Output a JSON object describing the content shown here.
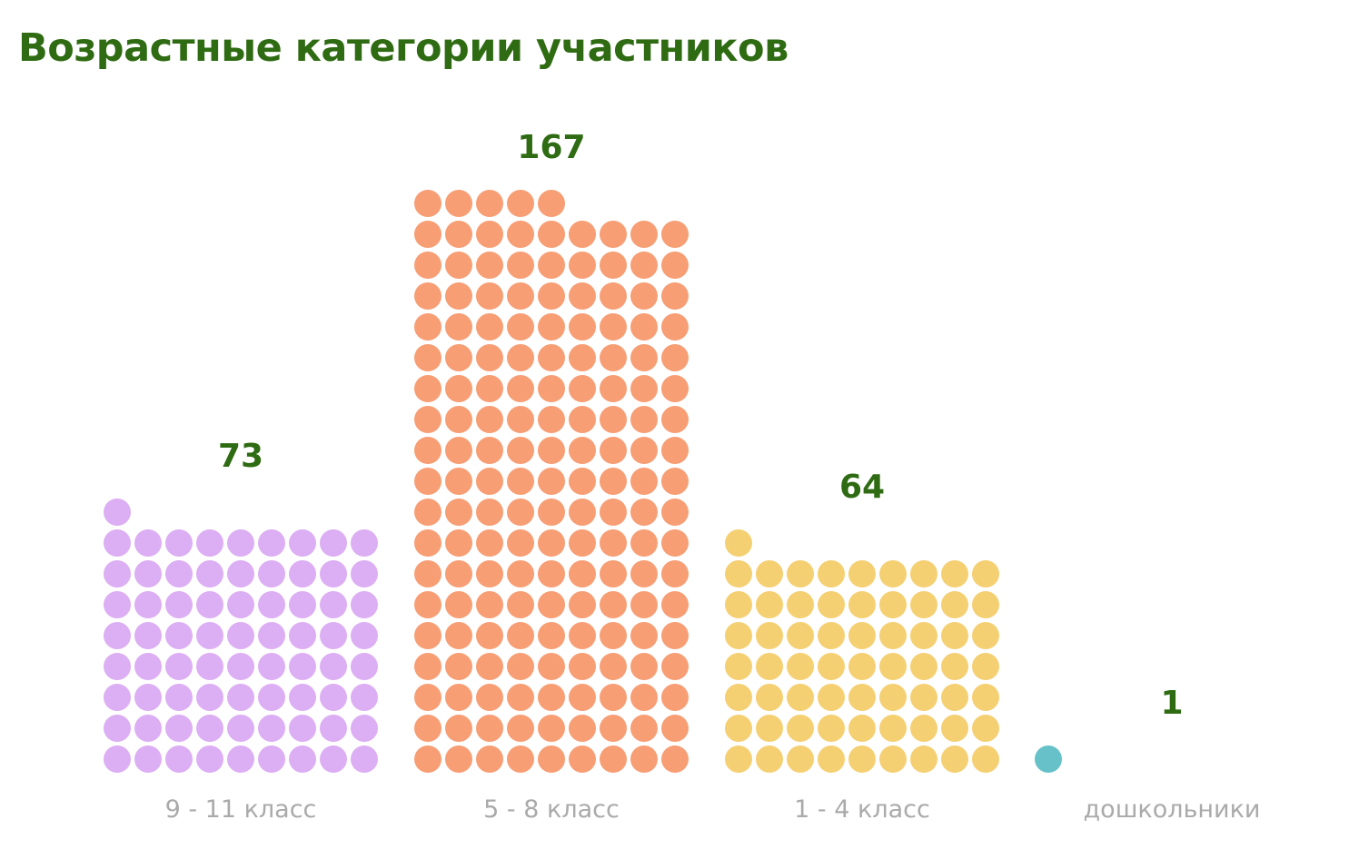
{
  "chart_data": {
    "type": "bar",
    "title": "Возрастные категории участников",
    "categories": [
      "9 - 11 класс",
      "5 - 8 класс",
      "1 - 4 класс",
      "дошкольники"
    ],
    "values": [
      73,
      167,
      64,
      1
    ],
    "colors": [
      "#dcaef3",
      "#f79e75",
      "#f5d073",
      "#66c1c9"
    ],
    "units_per_dot": 1,
    "dots_per_row": 9,
    "label_color": "#2e6b12",
    "category_label_color": "#aaaaaa"
  }
}
